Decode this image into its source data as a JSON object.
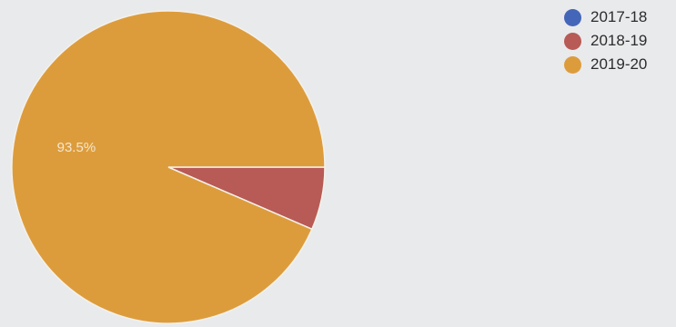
{
  "chart_data": {
    "type": "pie",
    "categories": [
      "2017-18",
      "2018-19",
      "2019-20"
    ],
    "values": [
      0,
      6.5,
      93.5
    ],
    "colors": [
      "#4466b8",
      "#b85a55",
      "#dd9c3c"
    ],
    "data_labels": [
      "",
      "",
      "93.5%"
    ],
    "legend_position": "top-right",
    "start_angle_deg": 0,
    "direction": "clockwise"
  }
}
